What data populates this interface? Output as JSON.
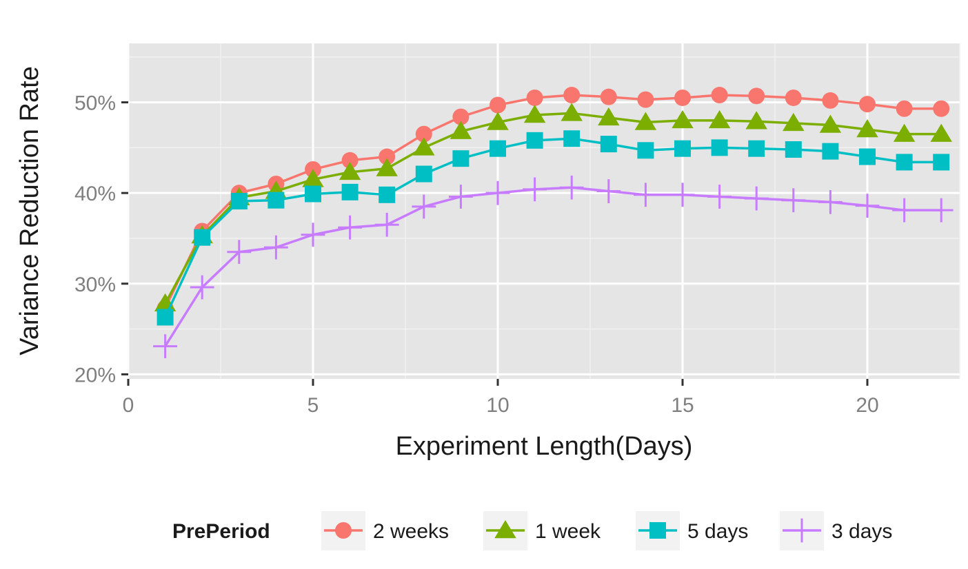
{
  "chart_data": {
    "type": "line",
    "xlabel": "Experiment Length(Days)",
    "ylabel": "Variance Reduction Rate",
    "xlim": [
      0,
      22.5
    ],
    "ylim": [
      19.5,
      56.5
    ],
    "x_ticks": [
      0,
      5,
      10,
      15,
      20
    ],
    "x_tick_labels": [
      "0",
      "5",
      "10",
      "15",
      "20"
    ],
    "y_ticks": [
      20,
      30,
      40,
      50
    ],
    "y_tick_labels": [
      "20%",
      "30%",
      "40%",
      "50%"
    ],
    "grid": true,
    "legend_position": "bottom",
    "legend_title": "PrePeriod",
    "x": [
      1,
      2,
      3,
      4,
      5,
      6,
      7,
      8,
      9,
      10,
      11,
      12,
      13,
      14,
      15,
      16,
      17,
      18,
      19,
      20,
      21,
      22
    ],
    "series": [
      {
        "name": "2 weeks",
        "marker": "circle",
        "color": "#f8766d",
        "values": [
          27.3,
          35.8,
          40.0,
          41.0,
          42.6,
          43.6,
          44.0,
          46.5,
          48.4,
          49.7,
          50.5,
          50.8,
          50.6,
          50.3,
          50.5,
          50.8,
          50.7,
          50.5,
          50.2,
          49.8,
          49.3,
          49.3
        ]
      },
      {
        "name": "1 week",
        "marker": "triangle",
        "color": "#7cae00",
        "values": [
          27.8,
          35.3,
          39.5,
          40.2,
          41.5,
          42.3,
          42.7,
          45.0,
          46.8,
          47.8,
          48.6,
          48.8,
          48.3,
          47.8,
          48.0,
          48.0,
          47.9,
          47.7,
          47.5,
          47.0,
          46.5,
          46.5
        ]
      },
      {
        "name": "5 days",
        "marker": "square",
        "color": "#00bfc4",
        "values": [
          26.3,
          35.1,
          39.1,
          39.2,
          39.9,
          40.1,
          39.8,
          42.1,
          43.8,
          44.9,
          45.8,
          46.0,
          45.4,
          44.7,
          44.9,
          45.0,
          44.9,
          44.8,
          44.6,
          44.0,
          43.4,
          43.4
        ]
      },
      {
        "name": "3 days",
        "marker": "cross",
        "color": "#c77cff",
        "values": [
          23.1,
          29.6,
          33.5,
          34.0,
          35.4,
          36.2,
          36.5,
          38.5,
          39.6,
          40.0,
          40.4,
          40.6,
          40.2,
          39.8,
          39.8,
          39.6,
          39.4,
          39.2,
          39.0,
          38.6,
          38.1,
          38.1
        ]
      }
    ]
  }
}
